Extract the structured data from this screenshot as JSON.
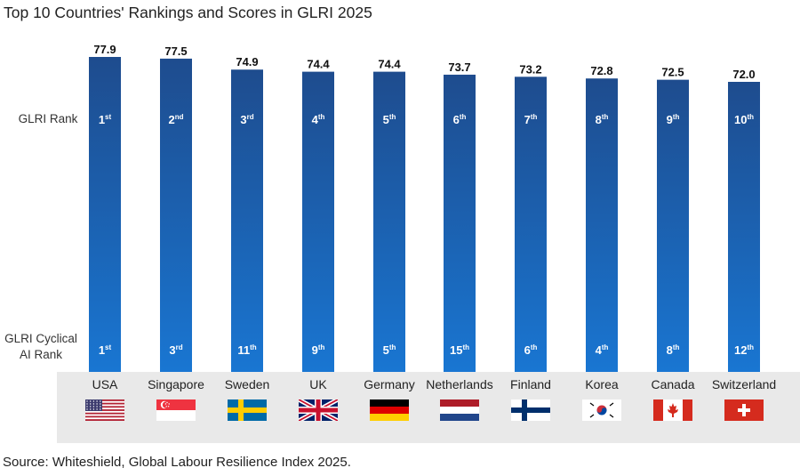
{
  "title": "Top 10 Countries' Rankings and Scores in GLRI 2025",
  "source": "Source: Whiteshield, Global Labour Resilience Index 2025.",
  "row_labels": {
    "glri_rank": "GLRI Rank",
    "cyclical_line1": "GLRI Cyclical",
    "cyclical_line2": "AI Rank"
  },
  "colors": {
    "bar_top": "#1e4c8e",
    "bar_bottom": "#1976d2",
    "panel": "#e9e9e9"
  },
  "chart_data": {
    "type": "bar",
    "title": "Top 10 Countries' Rankings and Scores in GLRI 2025",
    "categories": [
      "USA",
      "Singapore",
      "Sweden",
      "UK",
      "Germany",
      "Netherlands",
      "Finland",
      "Korea",
      "Canada",
      "Switzerland"
    ],
    "values": [
      77.9,
      77.5,
      74.9,
      74.4,
      74.4,
      73.7,
      73.2,
      72.8,
      72.5,
      72.0
    ],
    "value_labels": [
      "77.9",
      "77.5",
      "74.9",
      "74.4",
      "74.4",
      "73.7",
      "73.2",
      "72.8",
      "72.5",
      "72.0"
    ],
    "glri_rank": [
      {
        "num": "1",
        "suffix": "st"
      },
      {
        "num": "2",
        "suffix": "nd"
      },
      {
        "num": "3",
        "suffix": "rd"
      },
      {
        "num": "4",
        "suffix": "th"
      },
      {
        "num": "5",
        "suffix": "th"
      },
      {
        "num": "6",
        "suffix": "th"
      },
      {
        "num": "7",
        "suffix": "th"
      },
      {
        "num": "8",
        "suffix": "th"
      },
      {
        "num": "9",
        "suffix": "th"
      },
      {
        "num": "10",
        "suffix": "th"
      }
    ],
    "cyclical_ai_rank": [
      {
        "num": "1",
        "suffix": "st"
      },
      {
        "num": "3",
        "suffix": "rd"
      },
      {
        "num": "11",
        "suffix": "th"
      },
      {
        "num": "9",
        "suffix": "th"
      },
      {
        "num": "5",
        "suffix": "th"
      },
      {
        "num": "15",
        "suffix": "th"
      },
      {
        "num": "6",
        "suffix": "th"
      },
      {
        "num": "4",
        "suffix": "th"
      },
      {
        "num": "8",
        "suffix": "th"
      },
      {
        "num": "12",
        "suffix": "th"
      }
    ],
    "xlabel": "",
    "ylabel": "",
    "ylim": [
      0,
      77.9
    ]
  }
}
